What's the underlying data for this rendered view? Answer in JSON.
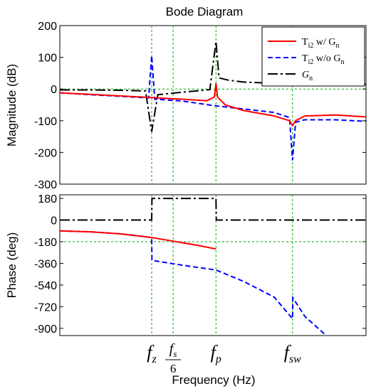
{
  "title": "Bode Diagram",
  "xlabel": "Frequency  (Hz)",
  "freq_markers": [
    {
      "id": "fz",
      "main": "f",
      "sub": "z"
    },
    {
      "id": "fs6",
      "main": "f",
      "sub": "s",
      "denominator": "6"
    },
    {
      "id": "fp",
      "main": "f",
      "sub": "p"
    },
    {
      "id": "fsw",
      "main": "f",
      "sub": "sw"
    }
  ],
  "colors": {
    "Ti2_with_Gn": "#ff0000",
    "Ti2_without_Gn": "#0000ff",
    "Gn": "#000000",
    "marker_lines": "#00aa00",
    "brown_overlap": "#8b4513"
  },
  "legend": [
    {
      "id": "Ti2_with_Gn",
      "base": "T",
      "sub": "i2",
      "rest": " w/ G",
      "rest_sub": "n",
      "style": "solid"
    },
    {
      "id": "Ti2_without_Gn",
      "base": "T",
      "sub": "i2",
      "rest": " w/o G",
      "rest_sub": "n",
      "style": "dashed"
    },
    {
      "id": "Gn",
      "base": "G",
      "sub": "n",
      "rest": "",
      "rest_sub": "",
      "style": "dashdot"
    }
  ],
  "chart_data": [
    {
      "type": "line",
      "panel": "magnitude",
      "ylabel": "Magnitude (dB)",
      "ylim": [
        -300,
        200
      ],
      "yticks": [
        200,
        100,
        0,
        -100,
        -200,
        -300
      ],
      "x_unit": "normalized frequency position (fz=0.30, fs/6=0.37, fp=0.51, fsw=0.76)",
      "xlim": [
        0,
        1
      ],
      "grid_y": 0,
      "series": [
        {
          "name": "Ti2 w/ Gn",
          "x": [
            0,
            0.1,
            0.2,
            0.3,
            0.4,
            0.48,
            0.505,
            0.51,
            0.515,
            0.54,
            0.6,
            0.7,
            0.75,
            0.76,
            0.77,
            0.8,
            0.9,
            1.0
          ],
          "y": [
            -12,
            -17,
            -22,
            -27,
            -32,
            -37,
            -25,
            18,
            -25,
            -50,
            -68,
            -85,
            -100,
            -115,
            -100,
            -85,
            -82,
            -88
          ]
        },
        {
          "name": "Ti2 w/o Gn",
          "x": [
            0,
            0.1,
            0.2,
            0.29,
            0.3,
            0.31,
            0.4,
            0.5,
            0.6,
            0.7,
            0.75,
            0.76,
            0.77,
            0.8,
            0.9,
            1.0
          ],
          "y": [
            -12,
            -18,
            -23,
            -28,
            105,
            -32,
            -38,
            -52,
            -63,
            -74,
            -90,
            -225,
            -105,
            -97,
            -97,
            -102
          ]
        },
        {
          "name": "Gn",
          "x": [
            0,
            0.1,
            0.2,
            0.28,
            0.3,
            0.32,
            0.4,
            0.49,
            0.51,
            0.52,
            0.55,
            0.6,
            0.7,
            0.8,
            0.9,
            1.0
          ],
          "y": [
            -3,
            -3,
            -4,
            -6,
            -135,
            -18,
            -10,
            -2,
            150,
            35,
            28,
            22,
            18,
            16,
            15,
            15
          ]
        }
      ]
    },
    {
      "type": "line",
      "panel": "phase",
      "ylabel": "Phase (deg)",
      "ylim": [
        -960,
        210
      ],
      "yticks": [
        180,
        0,
        -180,
        -360,
        -540,
        -720,
        -900
      ],
      "x_unit": "normalized frequency position",
      "xlim": [
        0,
        1
      ],
      "grid_y": -180,
      "series": [
        {
          "name": "Ti2 w/ Gn",
          "x": [
            0,
            0.1,
            0.2,
            0.3,
            0.37,
            0.45,
            0.51
          ],
          "y": [
            -90,
            -98,
            -115,
            -145,
            -175,
            -210,
            -240
          ]
        },
        {
          "name": "Ti2 w/o Gn",
          "x": [
            0,
            0.1,
            0.2,
            0.3,
            0.301,
            0.4,
            0.51,
            0.6,
            0.7,
            0.76,
            0.761,
            0.8,
            0.87
          ],
          "y": [
            -90,
            -98,
            -115,
            -145,
            -335,
            -375,
            -415,
            -510,
            -640,
            -820,
            -645,
            -800,
            -960
          ]
        },
        {
          "name": "Gn",
          "x": [
            0,
            0.3,
            0.301,
            0.51,
            0.511,
            1.0
          ],
          "y": [
            0,
            0,
            180,
            180,
            0,
            0
          ]
        }
      ]
    }
  ]
}
